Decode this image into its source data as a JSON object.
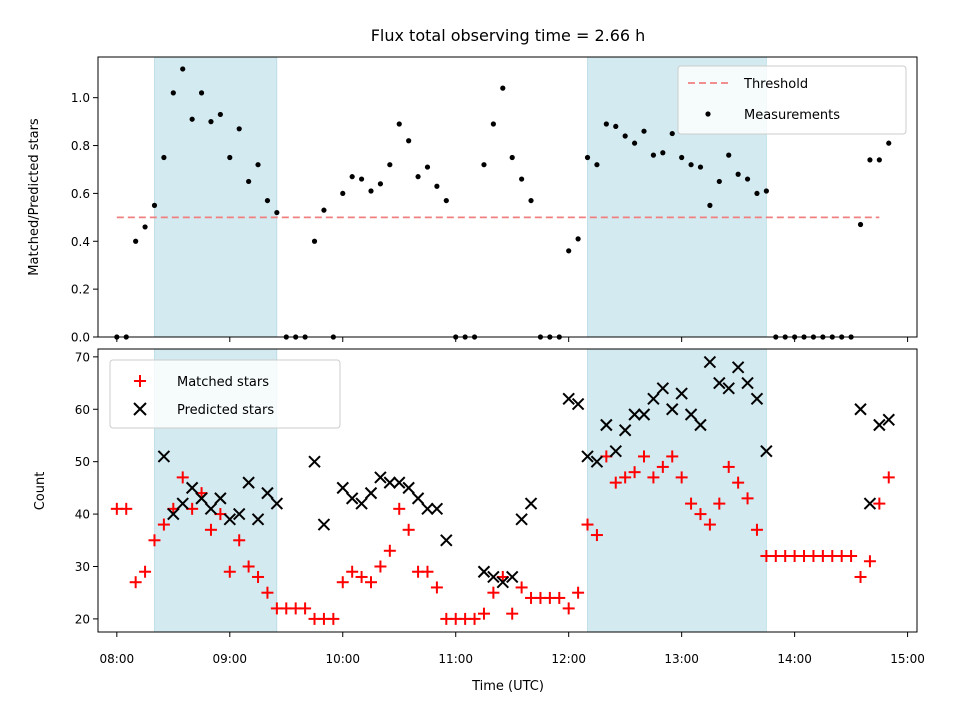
{
  "chart_data": [
    {
      "type": "scatter",
      "title": "Flux total observing time = 2.66 h",
      "xlabel": "",
      "ylabel": "Matched/Predicted stars",
      "xlim": [
        "07:50",
        "15:05"
      ],
      "ylim": [
        0,
        1.17
      ],
      "yticks": [
        "0.0",
        "0.2",
        "0.4",
        "0.6",
        "0.8",
        "1.0"
      ],
      "shaded_spans": [
        [
          "08:20",
          "09:25"
        ],
        [
          "12:10",
          "13:45"
        ]
      ],
      "shade_color": "#d3eaf1",
      "threshold": {
        "name": "Threshold",
        "value": 0.5,
        "x_range": [
          "08:00",
          "14:45"
        ],
        "color": "#f08080"
      },
      "legend": {
        "placement": "top-right",
        "entries": [
          "Threshold",
          "Measurements"
        ]
      },
      "series": [
        {
          "name": "Measurements",
          "color": "#000000",
          "marker": "dot",
          "points": [
            [
              "08:00",
              0
            ],
            [
              "08:05",
              0
            ],
            [
              "08:10",
              0.4
            ],
            [
              "08:15",
              0.46
            ],
            [
              "08:20",
              0.55
            ],
            [
              "08:25",
              0.75
            ],
            [
              "08:30",
              1.02
            ],
            [
              "08:35",
              1.12
            ],
            [
              "08:40",
              0.91
            ],
            [
              "08:45",
              1.02
            ],
            [
              "08:50",
              0.9
            ],
            [
              "08:55",
              0.93
            ],
            [
              "09:00",
              0.75
            ],
            [
              "09:05",
              0.87
            ],
            [
              "09:10",
              0.65
            ],
            [
              "09:15",
              0.72
            ],
            [
              "09:20",
              0.57
            ],
            [
              "09:25",
              0.52
            ],
            [
              "09:30",
              0
            ],
            [
              "09:35",
              0
            ],
            [
              "09:40",
              0
            ],
            [
              "09:45",
              0.4
            ],
            [
              "09:50",
              0.53
            ],
            [
              "09:55",
              0
            ],
            [
              "10:00",
              0.6
            ],
            [
              "10:05",
              0.67
            ],
            [
              "10:10",
              0.66
            ],
            [
              "10:15",
              0.61
            ],
            [
              "10:20",
              0.64
            ],
            [
              "10:25",
              0.72
            ],
            [
              "10:30",
              0.89
            ],
            [
              "10:35",
              0.82
            ],
            [
              "10:40",
              0.67
            ],
            [
              "10:45",
              0.71
            ],
            [
              "10:50",
              0.63
            ],
            [
              "10:55",
              0.57
            ],
            [
              "11:00",
              0
            ],
            [
              "11:05",
              0
            ],
            [
              "11:10",
              0
            ],
            [
              "11:15",
              0.72
            ],
            [
              "11:20",
              0.89
            ],
            [
              "11:25",
              1.04
            ],
            [
              "11:30",
              0.75
            ],
            [
              "11:35",
              0.66
            ],
            [
              "11:40",
              0.57
            ],
            [
              "11:45",
              0
            ],
            [
              "11:50",
              0
            ],
            [
              "11:55",
              0
            ],
            [
              "12:00",
              0.36
            ],
            [
              "12:05",
              0.41
            ],
            [
              "12:10",
              0.75
            ],
            [
              "12:15",
              0.72
            ],
            [
              "12:20",
              0.89
            ],
            [
              "12:25",
              0.88
            ],
            [
              "12:30",
              0.84
            ],
            [
              "12:35",
              0.81
            ],
            [
              "12:40",
              0.86
            ],
            [
              "12:45",
              0.76
            ],
            [
              "12:50",
              0.77
            ],
            [
              "12:55",
              0.85
            ],
            [
              "13:00",
              0.75
            ],
            [
              "13:05",
              0.72
            ],
            [
              "13:10",
              0.71
            ],
            [
              "13:15",
              0.55
            ],
            [
              "13:20",
              0.65
            ],
            [
              "13:25",
              0.76
            ],
            [
              "13:30",
              0.68
            ],
            [
              "13:35",
              0.66
            ],
            [
              "13:40",
              0.6
            ],
            [
              "13:45",
              0.61
            ],
            [
              "13:50",
              0
            ],
            [
              "13:55",
              0
            ],
            [
              "14:00",
              0
            ],
            [
              "14:05",
              0
            ],
            [
              "14:10",
              0
            ],
            [
              "14:15",
              0
            ],
            [
              "14:20",
              0
            ],
            [
              "14:25",
              0
            ],
            [
              "14:30",
              0
            ],
            [
              "14:35",
              0.47
            ],
            [
              "14:40",
              0.74
            ],
            [
              "14:45",
              0.74
            ],
            [
              "14:50",
              0.81
            ]
          ]
        }
      ]
    },
    {
      "type": "scatter",
      "title": "",
      "xlabel": "Time (UTC)",
      "ylabel": "Count",
      "xlim": [
        "07:50",
        "15:05"
      ],
      "ylim": [
        17.5,
        71.5
      ],
      "yticks": [
        "20",
        "30",
        "40",
        "50",
        "60",
        "70"
      ],
      "xticks": [
        "08:00",
        "09:00",
        "10:00",
        "11:00",
        "12:00",
        "13:00",
        "14:00",
        "15:00"
      ],
      "shaded_spans": [
        [
          "08:20",
          "09:25"
        ],
        [
          "12:10",
          "13:45"
        ]
      ],
      "shade_color": "#d3eaf1",
      "legend": {
        "placement": "top-left",
        "entries": [
          "Matched stars",
          "Predicted stars"
        ]
      },
      "series": [
        {
          "name": "Matched stars",
          "color": "#ff0000",
          "marker": "plus",
          "points": [
            [
              "08:00",
              41
            ],
            [
              "08:05",
              41
            ],
            [
              "08:10",
              27
            ],
            [
              "08:15",
              29
            ],
            [
              "08:20",
              35
            ],
            [
              "08:25",
              38
            ],
            [
              "08:30",
              41
            ],
            [
              "08:35",
              47
            ],
            [
              "08:40",
              41
            ],
            [
              "08:45",
              44
            ],
            [
              "08:50",
              37
            ],
            [
              "08:55",
              40
            ],
            [
              "09:00",
              29
            ],
            [
              "09:05",
              35
            ],
            [
              "09:10",
              30
            ],
            [
              "09:15",
              28
            ],
            [
              "09:20",
              25
            ],
            [
              "09:25",
              22
            ],
            [
              "09:30",
              22
            ],
            [
              "09:35",
              22
            ],
            [
              "09:40",
              22
            ],
            [
              "09:45",
              20
            ],
            [
              "09:50",
              20
            ],
            [
              "09:55",
              20
            ],
            [
              "10:00",
              27
            ],
            [
              "10:05",
              29
            ],
            [
              "10:10",
              28
            ],
            [
              "10:15",
              27
            ],
            [
              "10:20",
              30
            ],
            [
              "10:25",
              33
            ],
            [
              "10:30",
              41
            ],
            [
              "10:35",
              37
            ],
            [
              "10:40",
              29
            ],
            [
              "10:45",
              29
            ],
            [
              "10:50",
              26
            ],
            [
              "10:55",
              20
            ],
            [
              "11:00",
              20
            ],
            [
              "11:05",
              20
            ],
            [
              "11:10",
              20
            ],
            [
              "11:15",
              21
            ],
            [
              "11:20",
              25
            ],
            [
              "11:25",
              28
            ],
            [
              "11:30",
              21
            ],
            [
              "11:35",
              26
            ],
            [
              "11:40",
              24
            ],
            [
              "11:45",
              24
            ],
            [
              "11:50",
              24
            ],
            [
              "11:55",
              24
            ],
            [
              "12:00",
              22
            ],
            [
              "12:05",
              25
            ],
            [
              "12:10",
              38
            ],
            [
              "12:15",
              36
            ],
            [
              "12:20",
              51
            ],
            [
              "12:25",
              46
            ],
            [
              "12:30",
              47
            ],
            [
              "12:35",
              48
            ],
            [
              "12:40",
              51
            ],
            [
              "12:45",
              47
            ],
            [
              "12:50",
              49
            ],
            [
              "12:55",
              51
            ],
            [
              "13:00",
              47
            ],
            [
              "13:05",
              42
            ],
            [
              "13:10",
              40
            ],
            [
              "13:15",
              38
            ],
            [
              "13:20",
              42
            ],
            [
              "13:25",
              49
            ],
            [
              "13:30",
              46
            ],
            [
              "13:35",
              43
            ],
            [
              "13:40",
              37
            ],
            [
              "13:45",
              32
            ],
            [
              "13:50",
              32
            ],
            [
              "13:55",
              32
            ],
            [
              "14:00",
              32
            ],
            [
              "14:05",
              32
            ],
            [
              "14:10",
              32
            ],
            [
              "14:15",
              32
            ],
            [
              "14:20",
              32
            ],
            [
              "14:25",
              32
            ],
            [
              "14:30",
              32
            ],
            [
              "14:35",
              28
            ],
            [
              "14:40",
              31
            ],
            [
              "14:45",
              42
            ],
            [
              "14:50",
              47
            ]
          ]
        },
        {
          "name": "Predicted stars",
          "color": "#000000",
          "marker": "x",
          "points": [
            [
              "08:25",
              51
            ],
            [
              "08:30",
              40
            ],
            [
              "08:35",
              42
            ],
            [
              "08:40",
              45
            ],
            [
              "08:45",
              43
            ],
            [
              "08:50",
              41
            ],
            [
              "08:55",
              43
            ],
            [
              "09:00",
              39
            ],
            [
              "09:05",
              40
            ],
            [
              "09:10",
              46
            ],
            [
              "09:15",
              39
            ],
            [
              "09:20",
              44
            ],
            [
              "09:25",
              42
            ],
            [
              "09:45",
              50
            ],
            [
              "09:50",
              38
            ],
            [
              "10:00",
              45
            ],
            [
              "10:05",
              43
            ],
            [
              "10:10",
              42
            ],
            [
              "10:15",
              44
            ],
            [
              "10:20",
              47
            ],
            [
              "10:25",
              46
            ],
            [
              "10:30",
              46
            ],
            [
              "10:35",
              45
            ],
            [
              "10:40",
              43
            ],
            [
              "10:45",
              41
            ],
            [
              "10:50",
              41
            ],
            [
              "10:55",
              35
            ],
            [
              "11:15",
              29
            ],
            [
              "11:20",
              28
            ],
            [
              "11:25",
              27
            ],
            [
              "11:30",
              28
            ],
            [
              "11:35",
              39
            ],
            [
              "11:40",
              42
            ],
            [
              "12:00",
              62
            ],
            [
              "12:05",
              61
            ],
            [
              "12:10",
              51
            ],
            [
              "12:15",
              50
            ],
            [
              "12:20",
              57
            ],
            [
              "12:25",
              52
            ],
            [
              "12:30",
              56
            ],
            [
              "12:35",
              59
            ],
            [
              "12:40",
              59
            ],
            [
              "12:45",
              62
            ],
            [
              "12:50",
              64
            ],
            [
              "12:55",
              60
            ],
            [
              "13:00",
              63
            ],
            [
              "13:05",
              59
            ],
            [
              "13:10",
              57
            ],
            [
              "13:15",
              69
            ],
            [
              "13:20",
              65
            ],
            [
              "13:25",
              64
            ],
            [
              "13:30",
              68
            ],
            [
              "13:35",
              65
            ],
            [
              "13:40",
              62
            ],
            [
              "13:45",
              52
            ],
            [
              "14:35",
              60
            ],
            [
              "14:40",
              42
            ],
            [
              "14:45",
              57
            ],
            [
              "14:50",
              58
            ]
          ]
        }
      ]
    }
  ]
}
